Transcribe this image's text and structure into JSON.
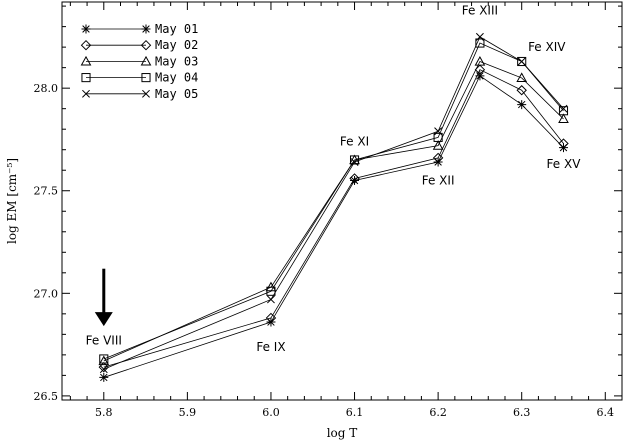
{
  "chart_data": {
    "type": "line",
    "xlabel": "log T",
    "ylabel": "log EM [cm⁻⁵]",
    "xlim": [
      5.75,
      6.42
    ],
    "ylim": [
      26.48,
      28.42
    ],
    "xticks": [
      "5.8",
      "5.9",
      "6.0",
      "6.1",
      "6.2",
      "6.3",
      "6.4"
    ],
    "yticks": [
      "26.5",
      "27.0",
      "27.5",
      "28.0"
    ],
    "x": [
      5.8,
      6.0,
      6.1,
      6.2,
      6.25,
      6.3,
      6.35
    ],
    "series": [
      {
        "name": "May 01",
        "marker": "asterisk",
        "values": [
          26.59,
          26.86,
          27.55,
          27.64,
          28.06,
          27.92,
          27.71
        ]
      },
      {
        "name": "May 02",
        "marker": "diamond",
        "values": [
          26.64,
          26.88,
          27.56,
          27.66,
          28.09,
          27.99,
          27.73
        ]
      },
      {
        "name": "May 03",
        "marker": "triangle",
        "values": [
          26.67,
          27.03,
          27.65,
          27.72,
          28.13,
          28.05,
          27.85
        ]
      },
      {
        "name": "May 04",
        "marker": "square",
        "values": [
          26.68,
          27.01,
          27.65,
          27.76,
          28.22,
          28.13,
          27.89
        ]
      },
      {
        "name": "May 05",
        "marker": "cross",
        "values": [
          26.63,
          26.97,
          27.64,
          27.79,
          28.25,
          28.13,
          27.9
        ]
      }
    ],
    "annotations": [
      {
        "text": "Fe VIII",
        "x": 5.8,
        "y": 26.75
      },
      {
        "text": "Fe IX",
        "x": 6.0,
        "y": 26.72
      },
      {
        "text": "Fe XI",
        "x": 6.1,
        "y": 27.72
      },
      {
        "text": "Fe XII",
        "x": 6.2,
        "y": 27.53
      },
      {
        "text": "Fe XIII",
        "x": 6.25,
        "y": 28.36
      },
      {
        "text": "Fe XIV",
        "x": 6.33,
        "y": 28.18
      },
      {
        "text": "Fe XV",
        "x": 6.35,
        "y": 27.61
      }
    ],
    "arrow": {
      "x": 5.8,
      "y_from": 27.12,
      "y_to": 26.84
    },
    "legend": "top-left",
    "grid": false
  }
}
